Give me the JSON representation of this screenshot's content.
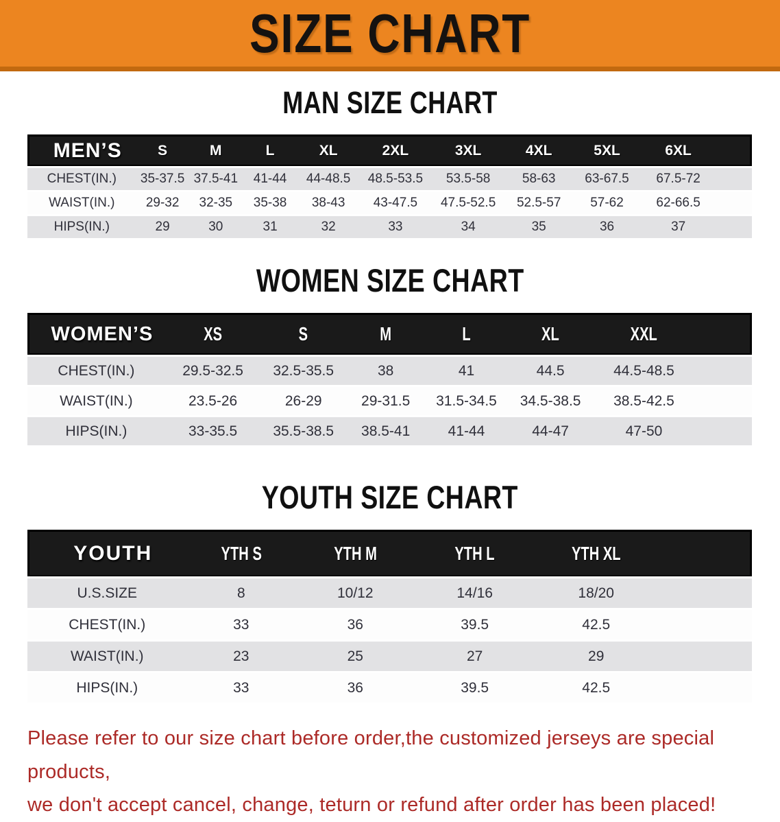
{
  "banner": {
    "title": "SIZE CHART"
  },
  "colors": {
    "banner_bg": "#EC8520",
    "banner_edge": "#C2690F",
    "table_header_bg": "#1A1A1A",
    "row_stripe_gray": "#E2E2E4",
    "note_red": "#AC2A27"
  },
  "men_section": {
    "title": "MAN SIZE CHART",
    "table": {
      "header": [
        "MEN’S",
        "S",
        "M",
        "L",
        "XL",
        "2XL",
        "3XL",
        "4XL",
        "5XL",
        "6XL"
      ],
      "rows": [
        {
          "label": "CHEST(IN.)",
          "values": [
            "35-37.5",
            "37.5-41",
            "41-44",
            "44-48.5",
            "48.5-53.5",
            "53.5-58",
            "58-63",
            "63-67.5",
            "67.5-72"
          ]
        },
        {
          "label": "WAIST(IN.)",
          "values": [
            "29-32",
            "32-35",
            "35-38",
            "38-43",
            "43-47.5",
            "47.5-52.5",
            "52.5-57",
            "57-62",
            "62-66.5"
          ]
        },
        {
          "label": "HIPS(IN.)",
          "values": [
            "29",
            "30",
            "31",
            "32",
            "33",
            "34",
            "35",
            "36",
            "37"
          ]
        }
      ]
    }
  },
  "women_section": {
    "title": "WOMEN SIZE CHART",
    "table": {
      "header": [
        "WOMEN’S",
        "XS",
        "S",
        "M",
        "L",
        "XL",
        "XXL"
      ],
      "rows": [
        {
          "label": "CHEST(IN.)",
          "values": [
            "29.5-32.5",
            "32.5-35.5",
            "38",
            "41",
            "44.5",
            "44.5-48.5"
          ]
        },
        {
          "label": "WAIST(IN.)",
          "values": [
            "23.5-26",
            "26-29",
            "29-31.5",
            "31.5-34.5",
            "34.5-38.5",
            "38.5-42.5"
          ]
        },
        {
          "label": "HIPS(IN.)",
          "values": [
            "33-35.5",
            "35.5-38.5",
            "38.5-41",
            "41-44",
            "44-47",
            "47-50"
          ]
        }
      ]
    }
  },
  "youth_section": {
    "title": "YOUTH SIZE CHART",
    "table": {
      "header": [
        "YOUTH",
        "YTH S",
        "YTH M",
        "YTH L",
        "YTH XL"
      ],
      "rows": [
        {
          "label": "U.S.SIZE",
          "values": [
            "8",
            "10/12",
            "14/16",
            "18/20"
          ]
        },
        {
          "label": "CHEST(IN.)",
          "values": [
            "33",
            "36",
            "39.5",
            "42.5"
          ]
        },
        {
          "label": "WAIST(IN.)",
          "values": [
            "23",
            "25",
            "27",
            "29"
          ]
        },
        {
          "label": "HIPS(IN.)",
          "values": [
            "33",
            "36",
            "39.5",
            "42.5"
          ]
        }
      ]
    }
  },
  "note": {
    "line1": "Please refer to our size chart before order,the customized jerseys are special products,",
    "line2": "we don't accept cancel, change, teturn or refund after order has been placed!"
  }
}
